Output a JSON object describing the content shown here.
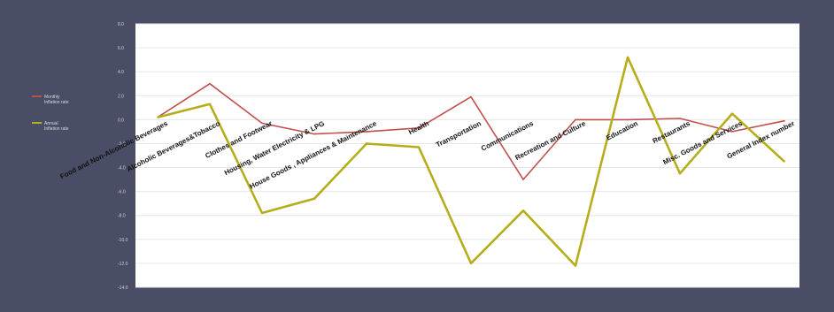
{
  "chart_data": {
    "type": "line",
    "title": "",
    "xlabel": "",
    "ylabel": "",
    "ylim": [
      -14,
      8
    ],
    "y_ticks": [
      8,
      6,
      4,
      2,
      0,
      -2,
      -4,
      -6,
      -8,
      -10,
      -12,
      -14
    ],
    "y_tick_labels": [
      "8.0",
      "6.0",
      "4.0",
      "2.0",
      "0.0",
      "-2.0",
      "-4.0",
      "-6.0",
      "-8.0",
      "-10.0",
      "-12.0",
      "-14.0"
    ],
    "grid": true,
    "legend_position": "left",
    "categories": [
      "Food and Non-Alcoholic Beverages",
      "Alcoholic Beverages&Tobacco",
      "Clothes and Footwear",
      "Housing, Water Electricity & LPG",
      "House Goods , Appliances & Maintenance",
      "Health",
      "Transportation",
      "Communications",
      "Recreation and Culture",
      "Education",
      "Restaurants",
      "Misc. Goods and Services",
      "General Index number"
    ],
    "series": [
      {
        "name": "Monthly Inflation rate",
        "color": "#c0504d",
        "values": [
          0.2,
          3.0,
          -0.3,
          -1.2,
          -1.0,
          -0.7,
          1.9,
          -5.0,
          0.0,
          0.0,
          0.1,
          -1.0,
          -0.1
        ]
      },
      {
        "name": "Annual Inflation rate",
        "color": "#b5ae1b",
        "values": [
          0.2,
          1.3,
          -7.8,
          -6.6,
          -2.0,
          -2.3,
          -12.0,
          -7.6,
          -12.2,
          5.2,
          -4.5,
          0.5,
          -3.5
        ]
      }
    ]
  },
  "colors": {
    "background": "#4a4d66",
    "plot_area": "#ffffff",
    "gridline": "#e6e6e6"
  }
}
